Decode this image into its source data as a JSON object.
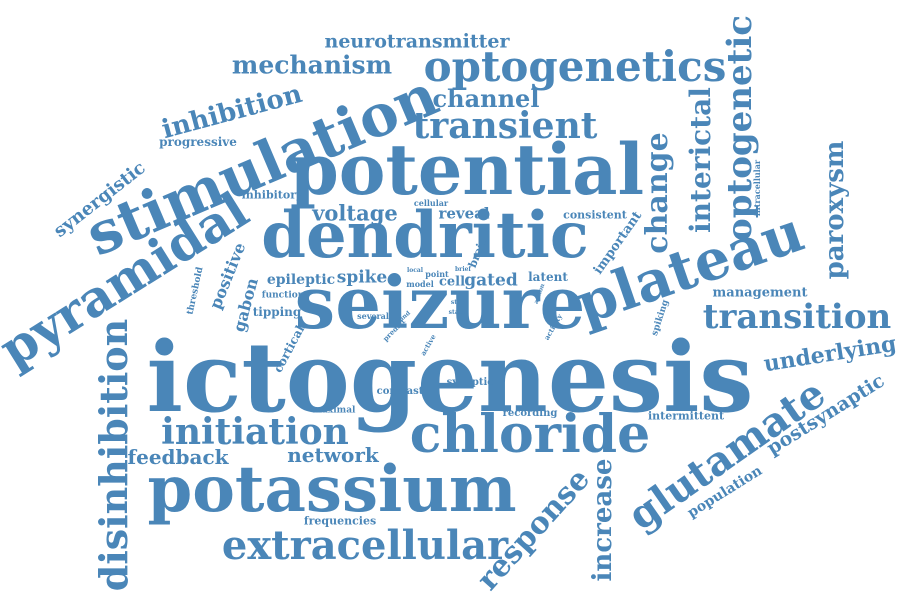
{
  "word_color": "#4a86b8",
  "background": "#ffffff",
  "words": [
    "ictogenesis",
    "seizure",
    "potential",
    "dendritic",
    "stimulation",
    "potassium",
    "chloride",
    "plateau",
    "pyramidal",
    "glutamate",
    "optogenetics",
    "disinhibition",
    "extracellular",
    "transient",
    "initiation",
    "transition",
    "optogenetic",
    "paroxysm",
    "change",
    "interictal",
    "response",
    "increase",
    "mechanism",
    "inhibition",
    "channel",
    "neurotransmitter",
    "underlying",
    "postsynaptic",
    "voltage",
    "network",
    "feedback",
    "synergistic",
    "progressive",
    "inhibitory",
    "positive",
    "gabon",
    "spike",
    "epileptic",
    "gated",
    "latent",
    "reveal",
    "consistent",
    "important",
    "management",
    "intermittent",
    "recording",
    "population",
    "frequencies",
    "contrast",
    "synaptic",
    "maximal",
    "threshold",
    "tipping",
    "function",
    "cortical",
    "several",
    "model",
    "cell",
    "brain",
    "local",
    "point",
    "brief",
    "cellular",
    "intracellular",
    "spiking",
    "predict",
    "active",
    "activity",
    "state",
    "step",
    "action",
    "find"
  ]
}
